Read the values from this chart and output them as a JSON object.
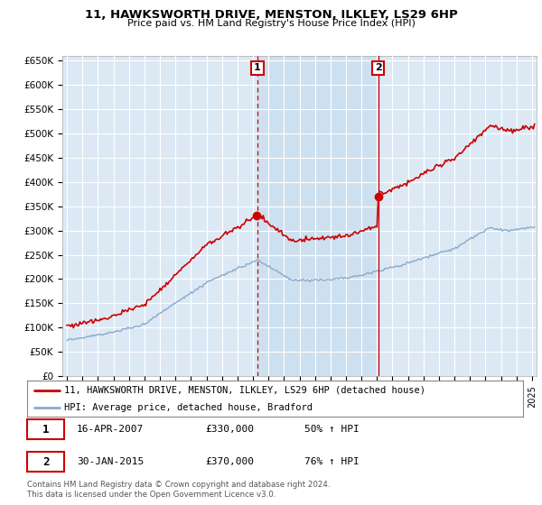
{
  "title": "11, HAWKSWORTH DRIVE, MENSTON, ILKLEY, LS29 6HP",
  "subtitle": "Price paid vs. HM Land Registry's House Price Index (HPI)",
  "ylabel_ticks": [
    "£0",
    "£50K",
    "£100K",
    "£150K",
    "£200K",
    "£250K",
    "£300K",
    "£350K",
    "£400K",
    "£450K",
    "£500K",
    "£550K",
    "£600K",
    "£650K"
  ],
  "ytick_values": [
    0,
    50000,
    100000,
    150000,
    200000,
    250000,
    300000,
    350000,
    400000,
    450000,
    500000,
    550000,
    600000,
    650000
  ],
  "xlim_start": 1994.7,
  "xlim_end": 2025.3,
  "ylim_min": 0,
  "ylim_max": 660000,
  "background_color": "#dce9f5",
  "shaded_color": "#cce0f0",
  "grid_color": "#ffffff",
  "red_line_color": "#cc0000",
  "blue_line_color": "#88aacc",
  "legend_entries": [
    "11, HAWKSWORTH DRIVE, MENSTON, ILKLEY, LS29 6HP (detached house)",
    "HPI: Average price, detached house, Bradford"
  ],
  "table_rows": [
    [
      "1",
      "16-APR-2007",
      "£330,000",
      "50% ↑ HPI"
    ],
    [
      "2",
      "30-JAN-2015",
      "£370,000",
      "76% ↑ HPI"
    ]
  ],
  "footer": "Contains HM Land Registry data © Crown copyright and database right 2024.\nThis data is licensed under the Open Government Licence v3.0.",
  "sale1_price": 330000,
  "sale2_price": 370000,
  "sale1_year": 2007.29,
  "sale2_year": 2015.08
}
